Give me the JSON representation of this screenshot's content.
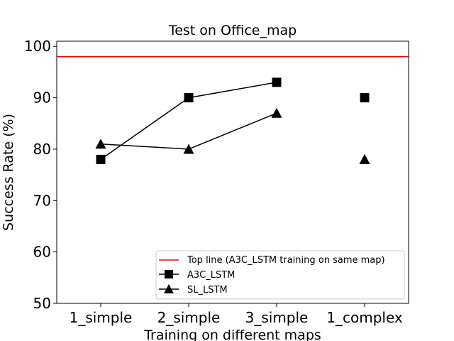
{
  "chart_data": {
    "type": "line",
    "title": "Test on Office_map",
    "xlabel": "Training on different maps",
    "ylabel": "Success Rate (%)",
    "categories": [
      "1_simple",
      "2_simple",
      "3_simple",
      "1_complex"
    ],
    "ylim": [
      50,
      101
    ],
    "yticks": [
      50,
      60,
      70,
      80,
      90,
      100
    ],
    "grid": false,
    "legend_position": "lower-right",
    "reference_line": {
      "name": "Top line (A3C_LSTM training on same map)",
      "value": 98,
      "color": "#ff0000"
    },
    "series": [
      {
        "name": "A3C_LSTM",
        "marker": "square",
        "color": "#000000",
        "values": [
          78,
          90,
          93,
          90
        ],
        "connected": [
          true,
          true,
          true,
          false
        ]
      },
      {
        "name": "SL_LSTM",
        "marker": "triangle",
        "color": "#000000",
        "values": [
          81,
          80,
          87,
          78
        ],
        "connected": [
          true,
          true,
          true,
          false
        ]
      }
    ]
  }
}
